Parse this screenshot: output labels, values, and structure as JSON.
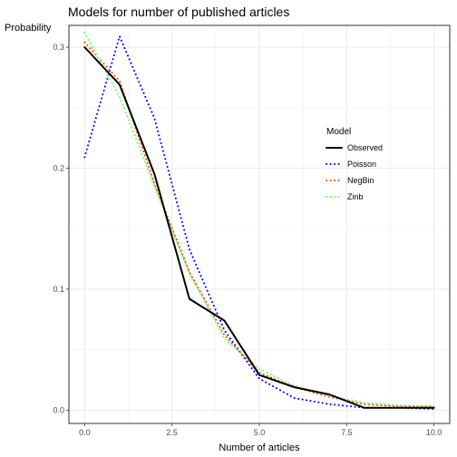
{
  "chart_data": {
    "type": "line",
    "title": "Models for number of published articles",
    "xlabel": "Number of articles",
    "ylabel": "Probability",
    "xlim": [
      -0.45,
      10.45
    ],
    "ylim": [
      -0.011,
      0.318
    ],
    "x_ticks": [
      0,
      2.5,
      5,
      7.5,
      10
    ],
    "x_tick_labels": [
      "0.0",
      "2.5",
      "5.0",
      "7.5",
      "10.0"
    ],
    "y_ticks": [
      0,
      0.1,
      0.2,
      0.3
    ],
    "y_tick_labels": [
      "0.0",
      "0.1",
      "0.2",
      "0.3"
    ],
    "grid": true,
    "theme": "bw",
    "legend_title": "Model",
    "legend_position": "right",
    "x": [
      0,
      1,
      2,
      3,
      4,
      5,
      6,
      7,
      8,
      9,
      10
    ],
    "series": [
      {
        "name": "Observed",
        "color": "#000000",
        "linestyle": "solid",
        "values": [
          0.3,
          0.269,
          0.195,
          0.092,
          0.074,
          0.029,
          0.019,
          0.013,
          0.002,
          0.002,
          0.002
        ]
      },
      {
        "name": "Poisson",
        "color": "#0000ff",
        "linestyle": "dotted",
        "values": [
          0.209,
          0.309,
          0.241,
          0.133,
          0.066,
          0.026,
          0.01,
          0.005,
          0.002,
          0.002,
          0.001
        ]
      },
      {
        "name": "NegBin",
        "color": "#ff4500",
        "linestyle": "dotted",
        "values": [
          0.304,
          0.272,
          0.187,
          0.114,
          0.062,
          0.031,
          0.019,
          0.011,
          0.005,
          0.003,
          0.003
        ]
      },
      {
        "name": "Zinb",
        "color": "#66ff66",
        "linestyle": "dotted",
        "values": [
          0.312,
          0.259,
          0.185,
          0.113,
          0.059,
          0.034,
          0.02,
          0.012,
          0.006,
          0.004,
          0.003
        ]
      }
    ]
  }
}
